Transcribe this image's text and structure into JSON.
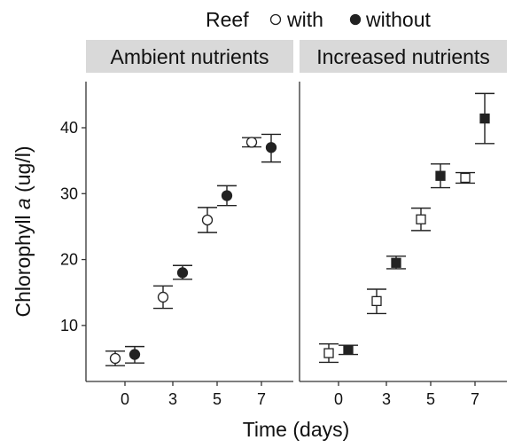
{
  "chart_data": {
    "type": "scatter",
    "legend": {
      "title": "Reef",
      "position": "top",
      "items": [
        {
          "label": "with",
          "filled": false
        },
        {
          "label": "without",
          "filled": true
        }
      ]
    },
    "ylabel_prefix": "Chlorophyll ",
    "ylabel_italic": "a",
    "ylabel_suffix": " (ug/l)",
    "xlabel": "Time (days)",
    "ylim": [
      1.5,
      47
    ],
    "yticks": [
      10,
      20,
      30,
      40
    ],
    "xtick_labels": [
      "0",
      "3",
      "5",
      "7"
    ],
    "grid": false,
    "colors": {
      "strip": "#d9d9d9",
      "marker": "#222222",
      "open_fill": "#ffffff",
      "axis": "#333333"
    },
    "panels": [
      {
        "title": "Ambient nutrients",
        "marker": "circle",
        "series": [
          {
            "name": "with",
            "filled": false,
            "x": [
              "0",
              "3",
              "5",
              "7"
            ],
            "y": [
              5.0,
              14.3,
              26.0,
              37.8
            ],
            "err_low": [
              3.9,
              12.6,
              24.1,
              37.1
            ],
            "err_high": [
              6.1,
              16.0,
              27.9,
              38.5
            ]
          },
          {
            "name": "without",
            "filled": true,
            "x": [
              "0",
              "3",
              "5",
              "7"
            ],
            "y": [
              5.6,
              18.0,
              29.7,
              37.0
            ],
            "err_low": [
              4.3,
              17.0,
              28.2,
              34.8
            ],
            "err_high": [
              6.8,
              19.1,
              31.2,
              39.0
            ]
          }
        ]
      },
      {
        "title": "Increased nutrients",
        "marker": "square",
        "series": [
          {
            "name": "with",
            "filled": false,
            "x": [
              "0",
              "3",
              "5",
              "7"
            ],
            "y": [
              5.8,
              13.7,
              26.1,
              32.4
            ],
            "err_low": [
              4.4,
              11.8,
              24.4,
              31.6
            ],
            "err_high": [
              7.2,
              15.5,
              27.8,
              33.2
            ]
          },
          {
            "name": "without",
            "filled": true,
            "x": [
              "0",
              "3",
              "5",
              "7"
            ],
            "y": [
              6.3,
              19.5,
              32.7,
              41.4
            ],
            "err_low": [
              5.6,
              18.6,
              30.9,
              37.6
            ],
            "err_high": [
              7.0,
              20.5,
              34.5,
              45.2
            ]
          }
        ]
      }
    ]
  }
}
